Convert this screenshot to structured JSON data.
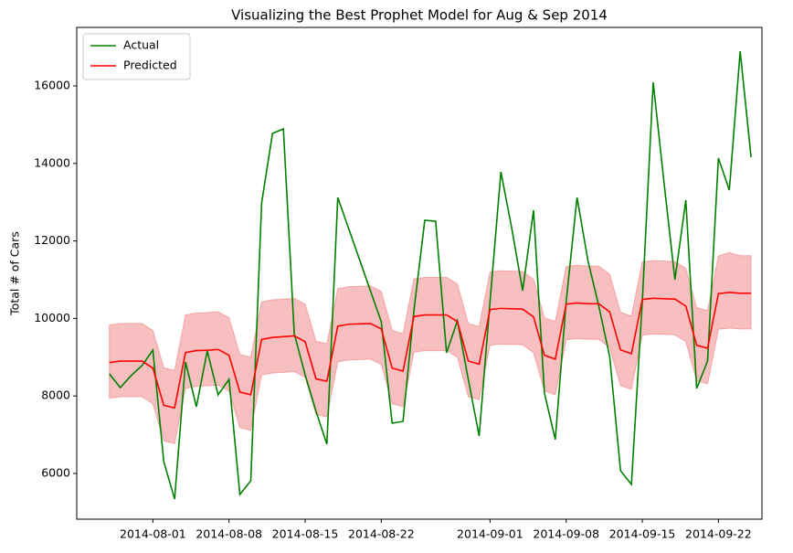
{
  "chart_data": {
    "type": "line",
    "title": "Visualizing the Best Prophet Model for Aug & Sep 2014",
    "ylabel": "Total # of Cars",
    "legend": "upper left",
    "x": [
      "2014-07-28",
      "2014-07-29",
      "2014-07-30",
      "2014-07-31",
      "2014-08-01",
      "2014-08-02",
      "2014-08-03",
      "2014-08-04",
      "2014-08-05",
      "2014-08-06",
      "2014-08-07",
      "2014-08-08",
      "2014-08-09",
      "2014-08-10",
      "2014-08-11",
      "2014-08-12",
      "2014-08-13",
      "2014-08-14",
      "2014-08-15",
      "2014-08-16",
      "2014-08-17",
      "2014-08-18",
      "2014-08-19",
      "2014-08-20",
      "2014-08-21",
      "2014-08-22",
      "2014-08-23",
      "2014-08-24",
      "2014-08-25",
      "2014-08-26",
      "2014-08-27",
      "2014-08-28",
      "2014-08-29",
      "2014-08-30",
      "2014-08-31",
      "2014-09-01",
      "2014-09-02",
      "2014-09-03",
      "2014-09-04",
      "2014-09-05",
      "2014-09-06",
      "2014-09-07",
      "2014-09-08",
      "2014-09-09",
      "2014-09-10",
      "2014-09-11",
      "2014-09-12",
      "2014-09-13",
      "2014-09-14",
      "2014-09-15",
      "2014-09-16",
      "2014-09-17",
      "2014-09-18",
      "2014-09-19",
      "2014-09-20",
      "2014-09-21",
      "2014-09-22",
      "2014-09-23",
      "2014-09-24",
      "2014-09-25"
    ],
    "series": [
      {
        "name": "Actual",
        "color": "#008000",
        "values": [
          8571,
          8217,
          8524,
          8783,
          9184,
          6307,
          5340,
          8877,
          7722,
          9160,
          8028,
          8429,
          5458,
          5811,
          12981,
          14774,
          14892,
          9608,
          8547,
          7604,
          6755,
          13123,
          12320,
          11520,
          10717,
          9915,
          7297,
          7344,
          10200,
          12533,
          12509,
          9113,
          9939,
          8429,
          6967,
          10434,
          13783,
          12320,
          10717,
          12792,
          8075,
          6873,
          10434,
          13123,
          11495,
          10316,
          9019,
          6071,
          5717,
          10434,
          16094,
          13500,
          11000,
          13052,
          8193,
          8901,
          14137,
          13311,
          16896,
          14160
        ]
      },
      {
        "name": "Predicted",
        "color": "#ff0000",
        "values": [
          8860,
          8900,
          8900,
          8900,
          8720,
          7760,
          7690,
          9120,
          9170,
          9180,
          9200,
          9050,
          8100,
          8030,
          9460,
          9510,
          9530,
          9550,
          9400,
          8440,
          8380,
          9800,
          9850,
          9860,
          9870,
          9730,
          8720,
          8640,
          10050,
          10090,
          10090,
          10090,
          9920,
          8900,
          8820,
          10230,
          10260,
          10250,
          10240,
          10040,
          9050,
          8950,
          10370,
          10400,
          10380,
          10380,
          10170,
          9190,
          9090,
          10490,
          10520,
          10510,
          10500,
          10320,
          9310,
          9230,
          10640,
          10670,
          10650,
          10650
        ]
      }
    ],
    "band": {
      "color": "#f08080",
      "upper": [
        9830,
        9870,
        9870,
        9870,
        9690,
        8730,
        8660,
        10090,
        10140,
        10150,
        10170,
        10020,
        9070,
        9000,
        10430,
        10480,
        10500,
        10520,
        10370,
        9410,
        9350,
        10770,
        10820,
        10830,
        10840,
        10700,
        9690,
        9610,
        11020,
        11060,
        11060,
        11060,
        10890,
        9870,
        9790,
        11200,
        11230,
        11220,
        11210,
        11010,
        10020,
        9920,
        11340,
        11370,
        11350,
        11350,
        11140,
        10160,
        10060,
        11460,
        11490,
        11480,
        11470,
        11290,
        10280,
        10200,
        11610,
        11700,
        11620,
        11620
      ],
      "lower": [
        7940,
        7980,
        7980,
        7980,
        7800,
        6840,
        6770,
        8200,
        8250,
        8260,
        8280,
        8130,
        7180,
        7110,
        8540,
        8590,
        8610,
        8630,
        8480,
        7520,
        7460,
        8880,
        8930,
        8940,
        8950,
        8810,
        7800,
        7720,
        9130,
        9170,
        9170,
        9170,
        9000,
        7980,
        7900,
        9310,
        9340,
        9330,
        9320,
        9120,
        8130,
        8030,
        9450,
        9480,
        9460,
        9460,
        9250,
        8270,
        8170,
        9570,
        9600,
        9590,
        9580,
        9400,
        8390,
        8310,
        9720,
        9750,
        9730,
        9730
      ]
    },
    "xlim": [
      "2014-07-25",
      "2014-09-26"
    ],
    "xticks": [
      "2014-08-01",
      "2014-08-08",
      "2014-08-15",
      "2014-08-22",
      "2014-09-01",
      "2014-09-08",
      "2014-09-15",
      "2014-09-22"
    ],
    "ylim": [
      4820,
      17510
    ],
    "yticks": [
      6000,
      8000,
      10000,
      12000,
      14000,
      16000
    ]
  }
}
